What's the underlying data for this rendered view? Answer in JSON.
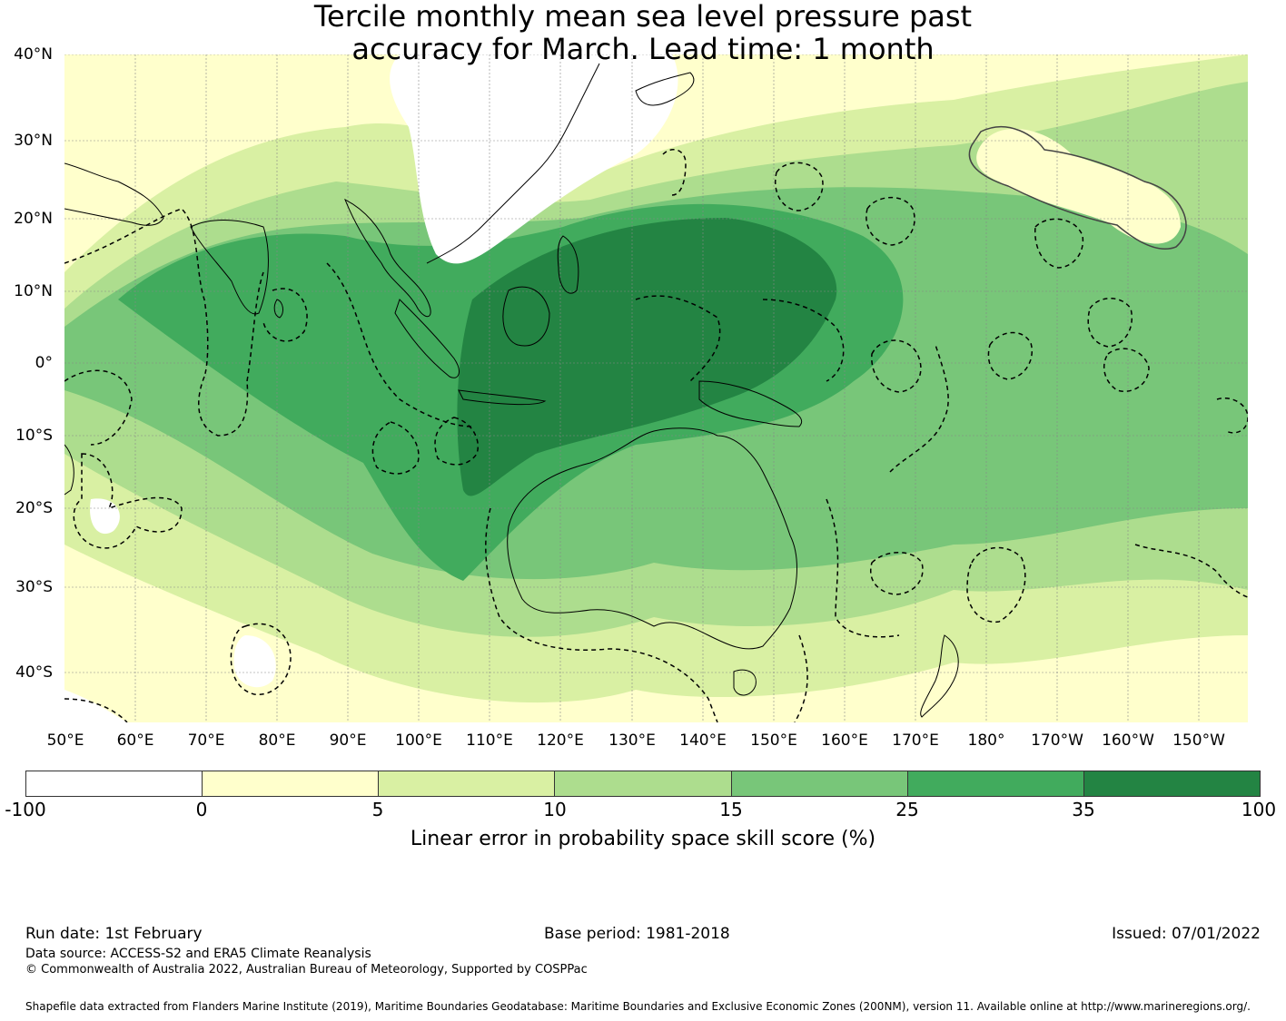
{
  "title": {
    "line1": "Tercile monthly mean sea level pressure past",
    "line2": "accuracy for March. Lead time: 1 month"
  },
  "map": {
    "lat_labels": [
      "40°N",
      "30°N",
      "20°N",
      "10°N",
      "0°",
      "10°S",
      "20°S",
      "30°S",
      "40°S"
    ],
    "lon_labels": [
      "50°E",
      "60°E",
      "70°E",
      "80°E",
      "90°E",
      "100°E",
      "110°E",
      "120°E",
      "130°E",
      "140°E",
      "150°E",
      "160°E",
      "170°E",
      "180°",
      "170°W",
      "160°W",
      "150°W"
    ]
  },
  "colorbar": {
    "ticks": [
      "-100",
      "0",
      "5",
      "10",
      "15",
      "25",
      "35",
      "100"
    ],
    "colors": [
      "#ffffff",
      "#ffffcc",
      "#d9f0a3",
      "#addd8e",
      "#78c679",
      "#41ab5d",
      "#238443"
    ],
    "label": "Linear error in probability space skill score (%)"
  },
  "footer": {
    "run_date": "Run date: 1st February",
    "base_period": "Base period: 1981-2018",
    "issued": "Issued: 07/01/2022",
    "data_source": "Data source: ACCESS-S2 and ERA5 Climate Reanalysis",
    "copyright": "© Commonwealth of Australia 2022, Australian Bureau of Meteorology, Supported by COSPPac",
    "shapefile": "Shapefile data extracted from Flanders Marine Institute (2019), Maritime Boundaries Geodatabase: Maritime Boundaries and Exclusive Economic Zones (200NM), version 11. Available online at http://www.marineregions.org/."
  }
}
